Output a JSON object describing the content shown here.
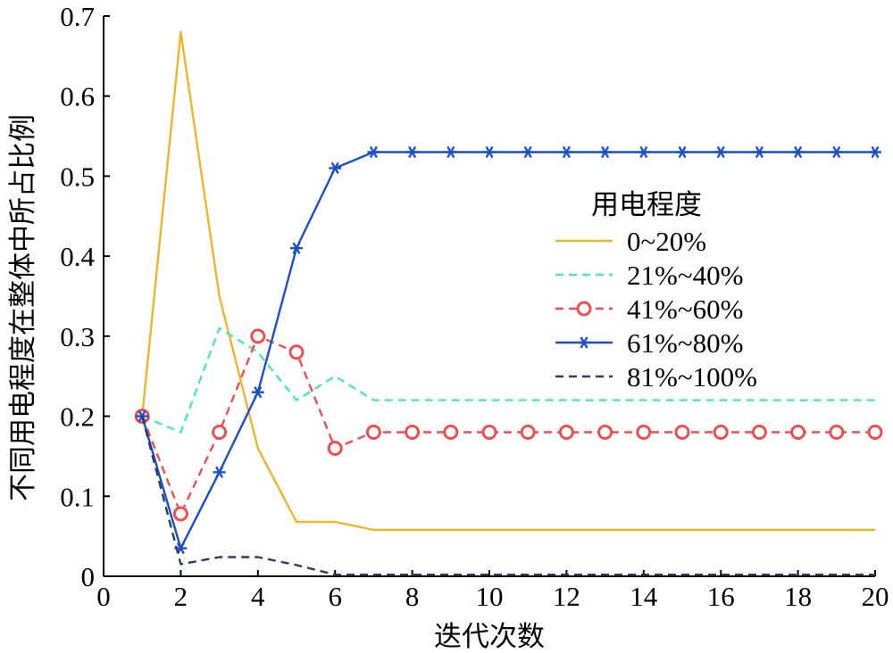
{
  "chart_data": {
    "type": "line",
    "xlabel": "迭代次数",
    "ylabel": "不同用电程度在整体中所占比例",
    "xlim": [
      0,
      20
    ],
    "ylim": [
      0,
      0.7
    ],
    "xticks": [
      "0",
      "2",
      "4",
      "6",
      "8",
      "10",
      "12",
      "14",
      "16",
      "18",
      "20"
    ],
    "yticks": [
      "0",
      "0.1",
      "0.2",
      "0.3",
      "0.4",
      "0.5",
      "0.6",
      "0.7"
    ],
    "grid": false,
    "legend": {
      "title": "用电程度",
      "position": "right"
    },
    "series": [
      {
        "name": "0~20%",
        "color": "#F0B429",
        "dash": "solid",
        "marker": "none",
        "x": [
          1,
          2,
          3,
          4,
          5,
          6,
          7,
          8,
          9,
          10,
          11,
          12,
          13,
          14,
          15,
          16,
          17,
          18,
          19,
          20
        ],
        "y": [
          0.2,
          0.68,
          0.35,
          0.16,
          0.068,
          0.068,
          0.058,
          0.058,
          0.058,
          0.058,
          0.058,
          0.058,
          0.058,
          0.058,
          0.058,
          0.058,
          0.058,
          0.058,
          0.058,
          0.058
        ]
      },
      {
        "name": "21%~40%",
        "color": "#48E8B8",
        "dash": "dashed",
        "marker": "none",
        "x": [
          1,
          2,
          3,
          4,
          5,
          6,
          7,
          8,
          9,
          10,
          11,
          12,
          13,
          14,
          15,
          16,
          17,
          18,
          19,
          20
        ],
        "y": [
          0.2,
          0.18,
          0.31,
          0.28,
          0.22,
          0.25,
          0.22,
          0.22,
          0.22,
          0.22,
          0.22,
          0.22,
          0.22,
          0.22,
          0.22,
          0.22,
          0.22,
          0.22,
          0.22,
          0.22
        ]
      },
      {
        "name": "41%~60%",
        "color": "#EE4E4E",
        "dash": "dashed",
        "marker": "circle",
        "x": [
          1,
          2,
          3,
          4,
          5,
          6,
          7,
          8,
          9,
          10,
          11,
          12,
          13,
          14,
          15,
          16,
          17,
          18,
          19,
          20
        ],
        "y": [
          0.2,
          0.078,
          0.18,
          0.3,
          0.28,
          0.16,
          0.18,
          0.18,
          0.18,
          0.18,
          0.18,
          0.18,
          0.18,
          0.18,
          0.18,
          0.18,
          0.18,
          0.18,
          0.18,
          0.18
        ]
      },
      {
        "name": "61%~80%",
        "color": "#1B4FCC",
        "dash": "solid",
        "marker": "star",
        "x": [
          1,
          2,
          3,
          4,
          5,
          6,
          7,
          8,
          9,
          10,
          11,
          12,
          13,
          14,
          15,
          16,
          17,
          18,
          19,
          20
        ],
        "y": [
          0.2,
          0.035,
          0.13,
          0.23,
          0.41,
          0.51,
          0.53,
          0.53,
          0.53,
          0.53,
          0.53,
          0.53,
          0.53,
          0.53,
          0.53,
          0.53,
          0.53,
          0.53,
          0.53,
          0.53
        ]
      },
      {
        "name": "81%~100%",
        "color": "#2A3E66",
        "dash": "dashed",
        "marker": "none",
        "x": [
          1,
          2,
          3,
          4,
          5,
          6,
          7,
          8,
          9,
          10,
          11,
          12,
          13,
          14,
          15,
          16,
          17,
          18,
          19,
          20
        ],
        "y": [
          0.2,
          0.015,
          0.024,
          0.024,
          0.014,
          0.002,
          0.002,
          0.002,
          0.002,
          0.002,
          0.002,
          0.002,
          0.002,
          0.002,
          0.002,
          0.002,
          0.002,
          0.002,
          0.002,
          0.002
        ]
      }
    ]
  }
}
